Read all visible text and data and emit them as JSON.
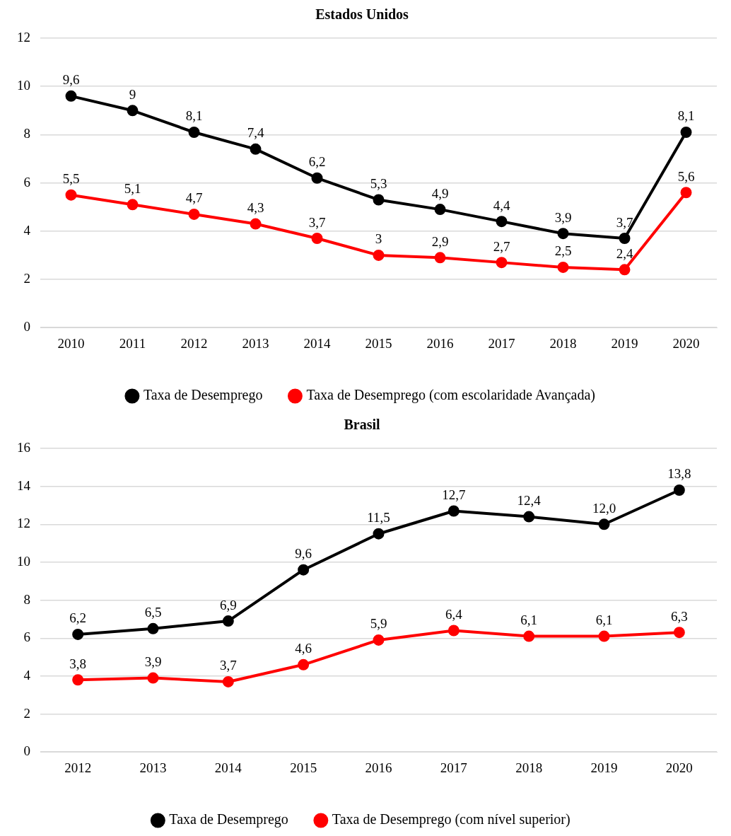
{
  "chart_data": [
    {
      "type": "line",
      "title": "Estados Unidos",
      "categories": [
        "2010",
        "2011",
        "2012",
        "2013",
        "2014",
        "2015",
        "2016",
        "2017",
        "2018",
        "2019",
        "2020"
      ],
      "series": [
        {
          "name": "Taxa de Desemprego",
          "color": "#000000",
          "values": [
            9.6,
            9,
            8.1,
            7.4,
            6.2,
            5.3,
            4.9,
            4.4,
            3.9,
            3.7,
            8.1
          ],
          "value_labels": [
            "9,6",
            "9",
            "8,1",
            "7,4",
            "6,2",
            "5,3",
            "4,9",
            "4,4",
            "3,9",
            "3,7",
            "8,1"
          ]
        },
        {
          "name": "Taxa de Desemprego (com escolaridade Avançada)",
          "color": "#ff0000",
          "values": [
            5.5,
            5.1,
            4.7,
            4.3,
            3.7,
            3,
            2.9,
            2.7,
            2.5,
            2.4,
            5.6
          ],
          "value_labels": [
            "5,5",
            "5,1",
            "4,7",
            "4,3",
            "3,7",
            "3",
            "2,9",
            "2,7",
            "2,5",
            "2,4",
            "5,6"
          ]
        }
      ],
      "ylim": [
        0,
        12
      ],
      "yticks": [
        0,
        2,
        4,
        6,
        8,
        10,
        12
      ],
      "grid": "y",
      "legend": "bottom",
      "marker": "circle",
      "line_style": "solid"
    },
    {
      "type": "line",
      "title": "Brasil",
      "categories": [
        "2012",
        "2013",
        "2014",
        "2015",
        "2016",
        "2017",
        "2018",
        "2019",
        "2020"
      ],
      "series": [
        {
          "name": "Taxa de Desemprego",
          "color": "#000000",
          "values": [
            6.2,
            6.5,
            6.9,
            9.6,
            11.5,
            12.7,
            12.4,
            12.0,
            13.8
          ],
          "value_labels": [
            "6,2",
            "6,5",
            "6,9",
            "9,6",
            "11,5",
            "12,7",
            "12,4",
            "12,0",
            "13,8"
          ]
        },
        {
          "name": "Taxa de Desemprego (com nível superior)",
          "color": "#ff0000",
          "values": [
            3.8,
            3.9,
            3.7,
            4.6,
            5.9,
            6.4,
            6.1,
            6.1,
            6.3
          ],
          "value_labels": [
            "3,8",
            "3,9",
            "3,7",
            "4,6",
            "5,9",
            "6,4",
            "6,1",
            "6,1",
            "6,3"
          ]
        }
      ],
      "ylim": [
        0,
        16
      ],
      "yticks": [
        0,
        2,
        4,
        6,
        8,
        10,
        12,
        14,
        16
      ],
      "grid": "y",
      "legend": "bottom",
      "marker": "circle",
      "line_style": "solid"
    }
  ]
}
